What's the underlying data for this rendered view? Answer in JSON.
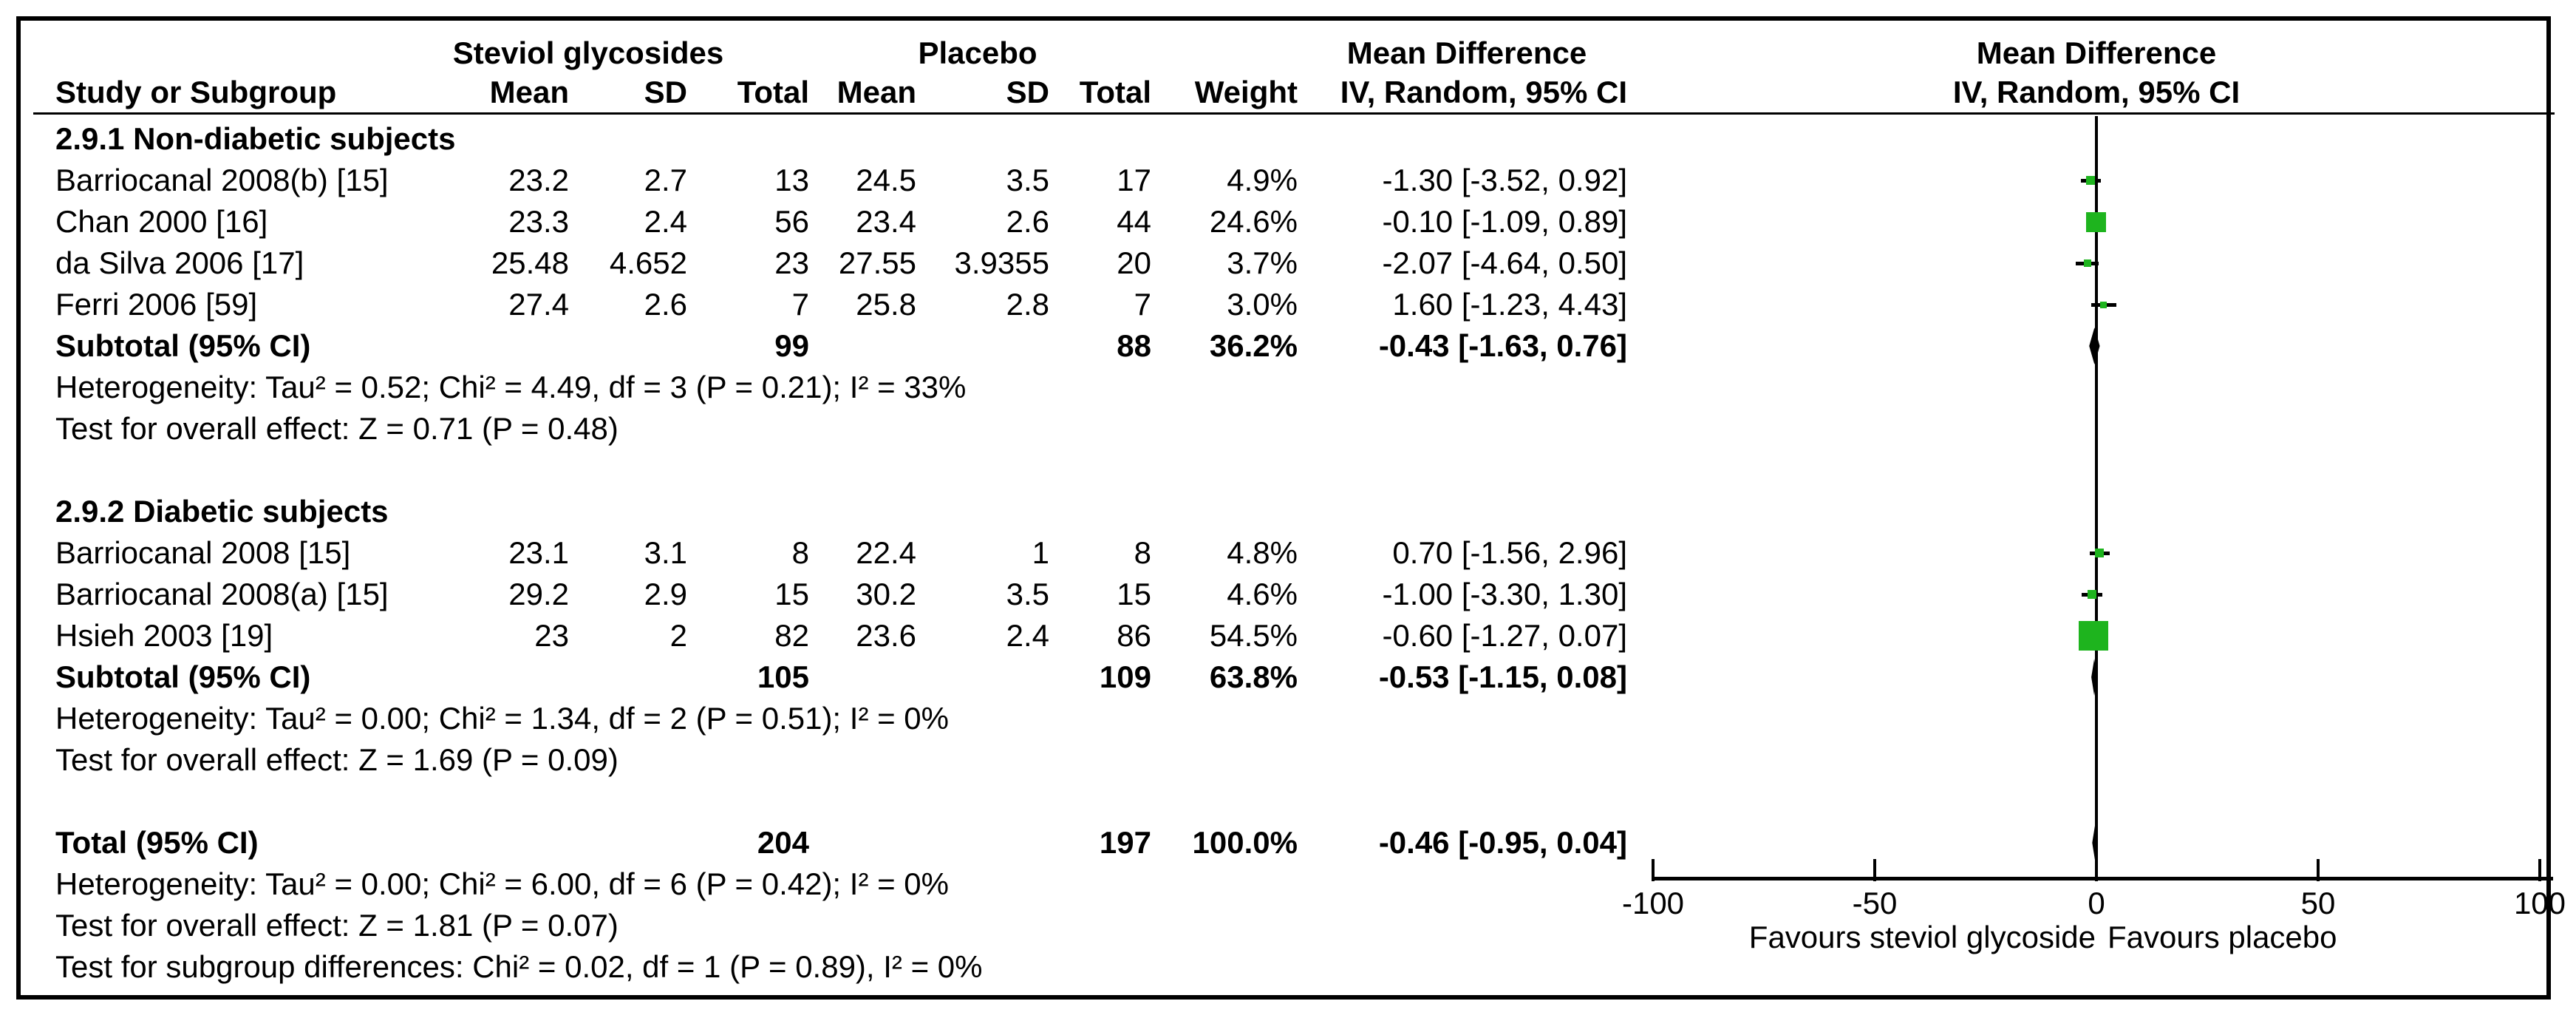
{
  "colors": {
    "marker_green": "#1eb41e",
    "line_black": "#000000"
  },
  "header": {
    "study_col": "Study or Subgroup",
    "group1_label": "Steviol glycosides",
    "group2_label": "Placebo",
    "mean": "Mean",
    "sd": "SD",
    "total": "Total",
    "weight": "Weight",
    "effect_line1": "Mean Difference",
    "effect_line2": "IV, Random, 95% CI",
    "plot_line1": "Mean Difference",
    "plot_line2": "IV, Random, 95% CI"
  },
  "table": {
    "subgroups": [
      {
        "heading": "2.9.1 Non-diabetic subjects",
        "studies": [
          {
            "name": "Barriocanal 2008(b) [15]",
            "mean1": "23.2",
            "sd1": "2.7",
            "total1": "13",
            "mean2": "24.5",
            "sd2": "3.5",
            "total2": "17",
            "weight": "4.9%",
            "effect": "-1.30 [-3.52, 0.92]"
          },
          {
            "name": "Chan 2000 [16]",
            "mean1": "23.3",
            "sd1": "2.4",
            "total1": "56",
            "mean2": "23.4",
            "sd2": "2.6",
            "total2": "44",
            "weight": "24.6%",
            "effect": "-0.10 [-1.09, 0.89]"
          },
          {
            "name": "da Silva 2006 [17]",
            "mean1": "25.48",
            "sd1": "4.652",
            "total1": "23",
            "mean2": "27.55",
            "sd2": "3.9355",
            "total2": "20",
            "weight": "3.7%",
            "effect": "-2.07 [-4.64, 0.50]"
          },
          {
            "name": "Ferri 2006 [59]",
            "mean1": "27.4",
            "sd1": "2.6",
            "total1": "7",
            "mean2": "25.8",
            "sd2": "2.8",
            "total2": "7",
            "weight": "3.0%",
            "effect": "1.60 [-1.23, 4.43]"
          }
        ],
        "subtotal": {
          "label": "Subtotal (95% CI)",
          "total1": "99",
          "total2": "88",
          "weight": "36.2%",
          "effect": "-0.43 [-1.63, 0.76]"
        },
        "heterogeneity": "Heterogeneity: Tau² = 0.52; Chi² = 4.49, df = 3 (P = 0.21); I² = 33%",
        "overall_effect": "Test for overall effect: Z = 0.71 (P = 0.48)"
      },
      {
        "heading": "2.9.2 Diabetic subjects",
        "studies": [
          {
            "name": "Barriocanal 2008 [15]",
            "mean1": "23.1",
            "sd1": "3.1",
            "total1": "8",
            "mean2": "22.4",
            "sd2": "1",
            "total2": "8",
            "weight": "4.8%",
            "effect": "0.70 [-1.56, 2.96]"
          },
          {
            "name": "Barriocanal 2008(a) [15]",
            "mean1": "29.2",
            "sd1": "2.9",
            "total1": "15",
            "mean2": "30.2",
            "sd2": "3.5",
            "total2": "15",
            "weight": "4.6%",
            "effect": "-1.00 [-3.30, 1.30]"
          },
          {
            "name": "Hsieh 2003 [19]",
            "mean1": "23",
            "sd1": "2",
            "total1": "82",
            "mean2": "23.6",
            "sd2": "2.4",
            "total2": "86",
            "weight": "54.5%",
            "effect": "-0.60 [-1.27, 0.07]"
          }
        ],
        "subtotal": {
          "label": "Subtotal (95% CI)",
          "total1": "105",
          "total2": "109",
          "weight": "63.8%",
          "effect": "-0.53 [-1.15, 0.08]"
        },
        "heterogeneity": "Heterogeneity: Tau² = 0.00; Chi² = 1.34, df = 2 (P = 0.51); I² = 0%",
        "overall_effect": "Test for overall effect: Z = 1.69 (P = 0.09)"
      }
    ],
    "total": {
      "label": "Total (95% CI)",
      "total1": "204",
      "total2": "197",
      "weight": "100.0%",
      "effect": "-0.46 [-0.95, 0.04]"
    },
    "total_heterogeneity": "Heterogeneity: Tau² = 0.00; Chi² = 6.00, df = 6 (P = 0.42); I² = 0%",
    "total_overall_effect": "Test for overall effect: Z = 1.81 (P = 0.07)",
    "subgroup_differences": "Test for subgroup differences: Chi² = 0.02, df = 1 (P = 0.89), I² = 0%"
  },
  "chart_data": {
    "type": "scatter",
    "subtype": "forest-plot",
    "effect_measure": "Mean Difference, IV, Random, 95% CI",
    "x_axis": {
      "min": -100,
      "max": 100,
      "ticks": [
        -100,
        -50,
        0,
        50,
        100
      ],
      "label_left": "Favours steviol glycoside",
      "label_right": "Favours placebo"
    },
    "groups": [
      {
        "name": "2.9.1 Non-diabetic subjects",
        "studies": [
          {
            "name": "Barriocanal 2008(b) [15]",
            "md": -1.3,
            "ci": [
              -3.52,
              0.92
            ],
            "weight": 4.9
          },
          {
            "name": "Chan 2000 [16]",
            "md": -0.1,
            "ci": [
              -1.09,
              0.89
            ],
            "weight": 24.6
          },
          {
            "name": "da Silva 2006 [17]",
            "md": -2.07,
            "ci": [
              -4.64,
              0.5
            ],
            "weight": 3.7
          },
          {
            "name": "Ferri 2006 [59]",
            "md": 1.6,
            "ci": [
              -1.23,
              4.43
            ],
            "weight": 3.0
          }
        ],
        "subtotal": {
          "md": -0.43,
          "ci": [
            -1.63,
            0.76
          ],
          "weight": 36.2
        }
      },
      {
        "name": "2.9.2 Diabetic subjects",
        "studies": [
          {
            "name": "Barriocanal 2008 [15]",
            "md": 0.7,
            "ci": [
              -1.56,
              2.96
            ],
            "weight": 4.8
          },
          {
            "name": "Barriocanal 2008(a) [15]",
            "md": -1.0,
            "ci": [
              -3.3,
              1.3
            ],
            "weight": 4.6
          },
          {
            "name": "Hsieh 2003 [19]",
            "md": -0.6,
            "ci": [
              -1.27,
              0.07
            ],
            "weight": 54.5
          }
        ],
        "subtotal": {
          "md": -0.53,
          "ci": [
            -1.15,
            0.08
          ],
          "weight": 63.8
        }
      }
    ],
    "total": {
      "md": -0.46,
      "ci": [
        -0.95,
        0.04
      ],
      "weight": 100.0
    }
  }
}
